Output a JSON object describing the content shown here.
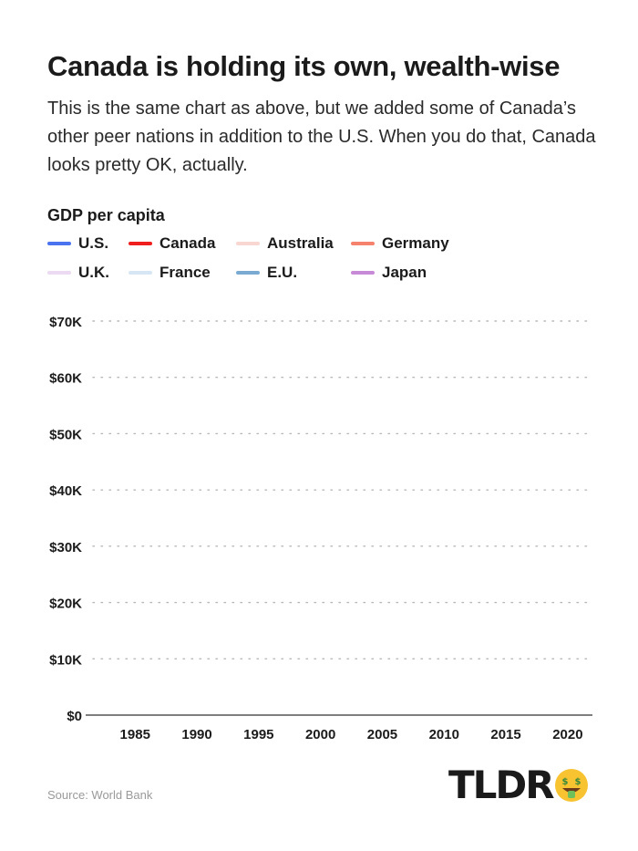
{
  "title": "Canada is holding its own, wealth-wise",
  "subtitle": "This is the same chart as above, but we added some of Canada’s other peer nations in addition to the U.S. When you do that, Canada looks pretty OK, actually.",
  "source": "Source: World Bank",
  "logo": {
    "text": "TLDR",
    "icon": "money-face-icon"
  },
  "colors": {
    "us": "#4a73f0",
    "canada": "#f01f1f",
    "australia": "#f8d6d1",
    "germany": "#f4826d",
    "uk": "#ecd9f2",
    "france": "#d6e6f5",
    "eu": "#7aaad2",
    "japan": "#c78ad6",
    "grid": "#b8b8b8",
    "axis": "#333333"
  },
  "chart_data": {
    "type": "line",
    "title": "GDP per capita",
    "xlabel": "",
    "ylabel": "",
    "xlim": [
      1981,
      2022
    ],
    "ylim": [
      0,
      70000
    ],
    "xticks": [
      1985,
      1990,
      1995,
      2000,
      2005,
      2010,
      2015,
      2020
    ],
    "xtick_labels": [
      "1985",
      "1990",
      "1995",
      "2000",
      "2005",
      "2010",
      "2015",
      "2020"
    ],
    "yticks": [
      0,
      10000,
      20000,
      30000,
      40000,
      50000,
      60000,
      70000
    ],
    "ytick_labels": [
      "$0",
      "$10K",
      "$20K",
      "$30K",
      "$40K",
      "$50K",
      "$60K",
      "$70K"
    ],
    "grid": true,
    "legend_position": "top-left",
    "series": [
      {
        "name": "U.S.",
        "color": "#4a73f0",
        "values": []
      },
      {
        "name": "Canada",
        "color": "#f01f1f",
        "values": []
      },
      {
        "name": "Australia",
        "color": "#f8d6d1",
        "values": []
      },
      {
        "name": "Germany",
        "color": "#f4826d",
        "values": []
      },
      {
        "name": "U.K.",
        "color": "#ecd9f2",
        "values": []
      },
      {
        "name": "France",
        "color": "#d6e6f5",
        "values": []
      },
      {
        "name": "E.U.",
        "color": "#7aaad2",
        "values": []
      },
      {
        "name": "Japan",
        "color": "#c78ad6",
        "values": []
      }
    ]
  }
}
